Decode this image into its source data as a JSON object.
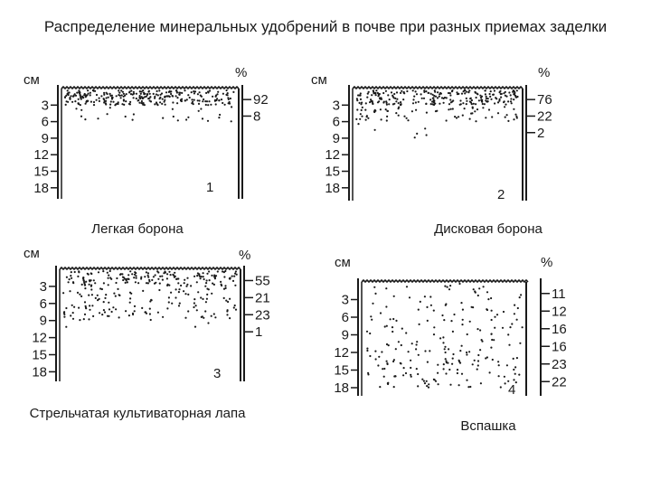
{
  "title": "Распределение минеральных удобрений в почве при разных приемах заделки",
  "unit_depth": "см",
  "unit_percent": "%",
  "panels": [
    {
      "number": "1",
      "caption": "Легкая борона",
      "depths": [
        "3",
        "6",
        "9",
        "12",
        "15",
        "18"
      ],
      "layers": [
        {
          "from_cm": 0,
          "to_cm": 3,
          "percent": "92"
        },
        {
          "from_cm": 3,
          "to_cm": 6,
          "percent": "8"
        }
      ]
    },
    {
      "number": "2",
      "caption": "Дисковая борона",
      "depths": [
        "3",
        "6",
        "9",
        "12",
        "15",
        "18"
      ],
      "layers": [
        {
          "from_cm": 0,
          "to_cm": 3,
          "percent": "76"
        },
        {
          "from_cm": 3,
          "to_cm": 6,
          "percent": "22"
        },
        {
          "from_cm": 6,
          "to_cm": 9,
          "percent": "2"
        }
      ]
    },
    {
      "number": "3",
      "caption": "Стрельчатая культиваторная лапа",
      "depths": [
        "3",
        "6",
        "9",
        "12",
        "15",
        "18"
      ],
      "layers": [
        {
          "from_cm": 0,
          "to_cm": 3,
          "percent": "55"
        },
        {
          "from_cm": 3,
          "to_cm": 6,
          "percent": "21"
        },
        {
          "from_cm": 6,
          "to_cm": 9,
          "percent": "23"
        },
        {
          "from_cm": 9,
          "to_cm": 12,
          "percent": "1"
        }
      ]
    },
    {
      "number": "4",
      "caption": "Вспашка",
      "depths": [
        "3",
        "6",
        "9",
        "12",
        "15",
        "18"
      ],
      "layers": [
        {
          "from_cm": 0,
          "to_cm": 3,
          "percent": "11"
        },
        {
          "from_cm": 3,
          "to_cm": 6,
          "percent": "12"
        },
        {
          "from_cm": 6,
          "to_cm": 9,
          "percent": "16"
        },
        {
          "from_cm": 9,
          "to_cm": 12,
          "percent": "16"
        },
        {
          "from_cm": 12,
          "to_cm": 15,
          "percent": "23"
        },
        {
          "from_cm": 15,
          "to_cm": 18,
          "percent": "22"
        }
      ]
    }
  ]
}
